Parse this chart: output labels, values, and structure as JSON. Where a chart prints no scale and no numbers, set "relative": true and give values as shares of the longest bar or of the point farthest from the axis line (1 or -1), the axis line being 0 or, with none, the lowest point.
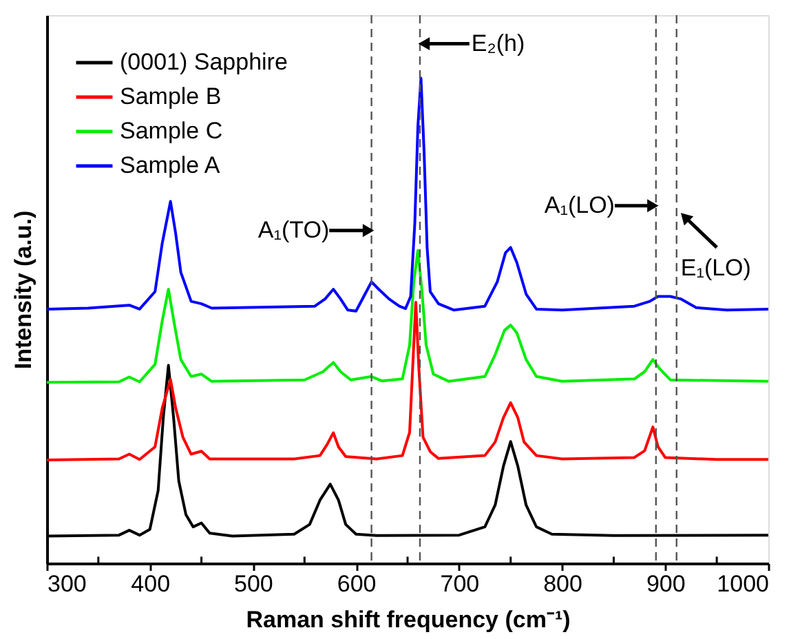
{
  "chart_data": {
    "type": "line",
    "relative": true,
    "xlabel": "Raman shift frequency (cm⁻¹)",
    "ylabel": "Intensity (a.u.)",
    "xlim": [
      300,
      1000
    ],
    "xticks": [
      300,
      {
        "value": 350,
        "label": null
      },
      400,
      {
        "value": 450,
        "label": null
      },
      500,
      {
        "value": 550,
        "label": null
      },
      600,
      {
        "value": 650,
        "label": null
      },
      700,
      {
        "value": 750,
        "label": null
      },
      800,
      {
        "value": 850,
        "label": null
      },
      900,
      {
        "value": 950,
        "label": null
      },
      1000
    ],
    "tick_labels": "x",
    "grid": false,
    "legend": "top left",
    "marker": "none",
    "line_style": "solid",
    "series": [
      {
        "name": "(0001) Sapphire",
        "color": "#000000",
        "x": [
          300,
          370,
          380,
          390,
          400,
          408,
          413,
          418,
          423,
          428,
          435,
          442,
          450,
          458,
          480,
          540,
          555,
          565,
          575,
          583,
          590,
          600,
          620,
          700,
          725,
          735,
          743,
          750,
          757,
          765,
          775,
          790,
          850,
          1000
        ],
        "values": [
          0.056,
          0.058,
          0.068,
          0.058,
          0.07,
          0.15,
          0.3,
          0.408,
          0.3,
          0.17,
          0.1,
          0.075,
          0.083,
          0.062,
          0.056,
          0.06,
          0.08,
          0.13,
          0.163,
          0.13,
          0.08,
          0.06,
          0.057,
          0.058,
          0.075,
          0.12,
          0.2,
          0.251,
          0.2,
          0.12,
          0.075,
          0.06,
          0.057,
          0.058
        ]
      },
      {
        "name": "Sample B",
        "color": "#ff0000",
        "x": [
          300,
          370,
          380,
          390,
          405,
          412,
          420,
          425,
          432,
          440,
          450,
          458,
          540,
          565,
          572,
          578,
          583,
          590,
          620,
          645,
          652,
          656,
          658,
          661,
          665,
          672,
          680,
          725,
          735,
          743,
          750,
          757,
          763,
          775,
          800,
          870,
          880,
          888,
          893,
          900,
          950,
          1000
        ],
        "values": [
          0.213,
          0.215,
          0.225,
          0.214,
          0.24,
          0.32,
          0.379,
          0.32,
          0.26,
          0.225,
          0.231,
          0.215,
          0.215,
          0.222,
          0.245,
          0.269,
          0.24,
          0.22,
          0.215,
          0.222,
          0.27,
          0.45,
          0.538,
          0.4,
          0.26,
          0.23,
          0.216,
          0.222,
          0.25,
          0.3,
          0.331,
          0.3,
          0.25,
          0.222,
          0.215,
          0.218,
          0.232,
          0.281,
          0.24,
          0.218,
          0.214,
          0.214
        ]
      },
      {
        "name": "Sample C",
        "color": "#00ee00",
        "x": [
          300,
          370,
          380,
          390,
          405,
          412,
          418,
          424,
          430,
          440,
          450,
          460,
          550,
          568,
          578,
          585,
          595,
          615,
          625,
          645,
          652,
          656,
          660,
          664,
          668,
          675,
          690,
          725,
          735,
          744,
          750,
          756,
          765,
          775,
          800,
          870,
          880,
          888,
          895,
          905,
          1000
        ],
        "values": [
          0.373,
          0.374,
          0.384,
          0.374,
          0.41,
          0.5,
          0.565,
          0.49,
          0.42,
          0.385,
          0.39,
          0.375,
          0.378,
          0.395,
          0.414,
          0.395,
          0.378,
          0.385,
          0.376,
          0.38,
          0.45,
          0.58,
          0.645,
          0.56,
          0.45,
          0.39,
          0.375,
          0.385,
          0.43,
          0.48,
          0.491,
          0.475,
          0.42,
          0.385,
          0.375,
          0.38,
          0.395,
          0.42,
          0.4,
          0.378,
          0.375
        ]
      },
      {
        "name": "Sample A",
        "color": "#0000ff",
        "x": [
          300,
          340,
          380,
          390,
          405,
          412,
          420,
          425,
          430,
          440,
          450,
          460,
          560,
          570,
          578,
          585,
          592,
          600,
          610,
          615,
          622,
          632,
          642,
          648,
          653,
          657,
          660,
          663,
          666,
          669,
          672,
          680,
          695,
          725,
          737,
          745,
          750,
          756,
          765,
          775,
          800,
          870,
          885,
          893,
          905,
          915,
          930,
          960,
          1000
        ],
        "values": [
          0.524,
          0.526,
          0.532,
          0.524,
          0.56,
          0.66,
          0.746,
          0.68,
          0.6,
          0.54,
          0.535,
          0.526,
          0.53,
          0.545,
          0.565,
          0.545,
          0.522,
          0.52,
          0.56,
          0.58,
          0.565,
          0.545,
          0.53,
          0.525,
          0.55,
          0.7,
          0.9,
          1.0,
          0.85,
          0.65,
          0.56,
          0.535,
          0.522,
          0.53,
          0.58,
          0.64,
          0.651,
          0.62,
          0.555,
          0.524,
          0.522,
          0.53,
          0.54,
          0.55,
          0.55,
          0.545,
          0.527,
          0.522,
          0.524
        ]
      }
    ],
    "ref_lines": [
      {
        "axis": "x",
        "value": 615,
        "label": "A₁(TO)",
        "color": "#555555",
        "line_style": "dashed"
      },
      {
        "axis": "x",
        "value": 662,
        "label": "E₂(h)",
        "color": "#555555",
        "line_style": "dashed"
      },
      {
        "axis": "x",
        "value": 891,
        "label": "A₁(LO)",
        "color": "#555555",
        "line_style": "dashed"
      },
      {
        "axis": "x",
        "value": 911,
        "label": "E₁(LO)",
        "color": "#555555",
        "line_style": "dashed"
      }
    ]
  }
}
